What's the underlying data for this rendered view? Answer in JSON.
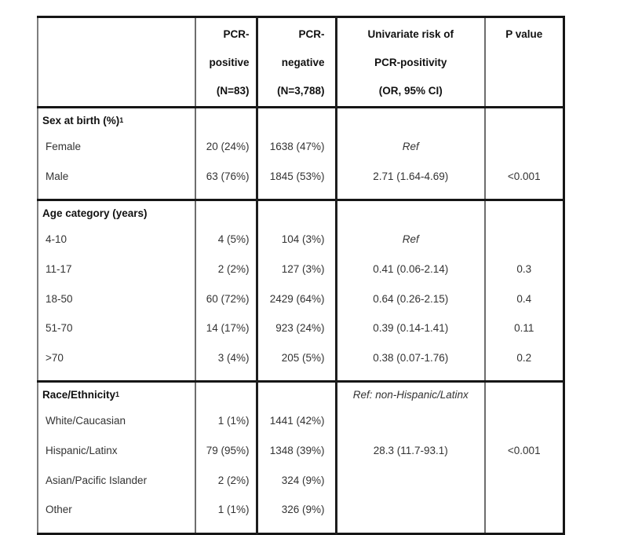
{
  "colors": {
    "background": "#ffffff",
    "border_thick": "#161616",
    "border_thin": "#6d6d6d",
    "header_text": "#111111",
    "body_text": "#333333"
  },
  "header": {
    "row_label_column": "",
    "col_positive": [
      "PCR-",
      "positive",
      "(N=83)"
    ],
    "col_negative": [
      "PCR-",
      "negative",
      "(N=3,788)"
    ],
    "col_or": [
      "Univariate risk of",
      "PCR-positivity",
      "(OR, 95% CI)"
    ],
    "col_p": [
      "P value"
    ]
  },
  "sections": [
    {
      "title": "Sex at birth (%)",
      "title_sup": "1",
      "or_note": "",
      "rows": [
        {
          "label": "Female",
          "positive": "20 (24%)",
          "negative": "1638 (47%)",
          "or": "Ref",
          "or_italic": true,
          "p": ""
        },
        {
          "label": "Male",
          "positive": "63 (76%)",
          "negative": "1845 (53%)",
          "or": "2.71 (1.64-4.69)",
          "or_italic": false,
          "p": "<0.001"
        }
      ]
    },
    {
      "title": "Age category (years)",
      "title_sup": "",
      "or_note": "",
      "rows": [
        {
          "label": "4-10",
          "positive": "4 (5%)",
          "negative": "104 (3%)",
          "or": "Ref",
          "or_italic": true,
          "p": ""
        },
        {
          "label": "11-17",
          "positive": "2 (2%)",
          "negative": "127 (3%)",
          "or": "0.41 (0.06-2.14)",
          "or_italic": false,
          "p": "0.3"
        },
        {
          "label": "18-50",
          "positive": "60 (72%)",
          "negative": "2429 (64%)",
          "or": "0.64 (0.26-2.15)",
          "or_italic": false,
          "p": "0.4"
        },
        {
          "label": "51-70",
          "positive": "14 (17%)",
          "negative": "923 (24%)",
          "or": "0.39 (0.14-1.41)",
          "or_italic": false,
          "p": "0.11"
        },
        {
          "label": ">70",
          "positive": "3 (4%)",
          "negative": "205 (5%)",
          "or": "0.38 (0.07-1.76)",
          "or_italic": false,
          "p": "0.2"
        }
      ]
    },
    {
      "title": "Race/Ethnicity",
      "title_sup": "1",
      "or_note": "Ref: non-Hispanic/Latinx",
      "rows": [
        {
          "label": "White/Caucasian",
          "positive": "1 (1%)",
          "negative": "1441 (42%)",
          "or": "",
          "or_italic": false,
          "p": ""
        },
        {
          "label": "Hispanic/Latinx",
          "positive": "79 (95%)",
          "negative": "1348 (39%)",
          "or": "28.3 (11.7-93.1)",
          "or_italic": false,
          "p": "<0.001"
        },
        {
          "label": "Asian/Pacific Islander",
          "positive": "2 (2%)",
          "negative": "324 (9%)",
          "or": "",
          "or_italic": false,
          "p": ""
        },
        {
          "label": "Other",
          "positive": "1 (1%)",
          "negative": "326 (9%)",
          "or": "",
          "or_italic": false,
          "p": ""
        }
      ]
    }
  ]
}
